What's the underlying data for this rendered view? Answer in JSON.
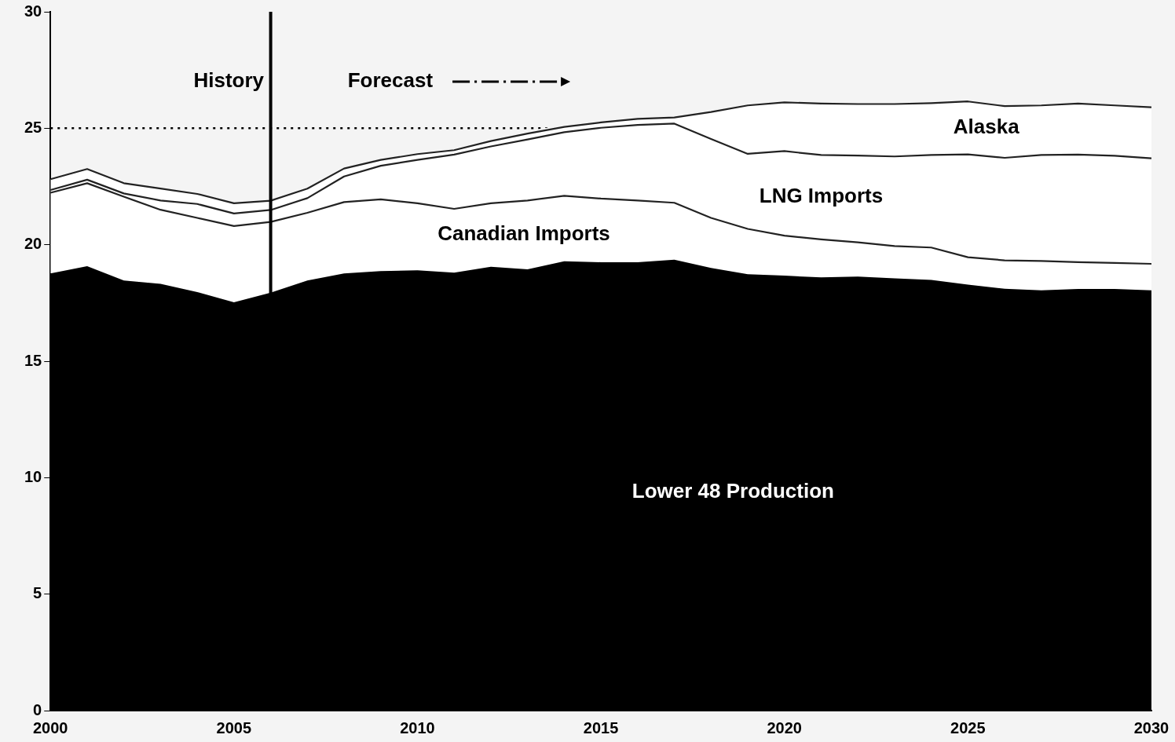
{
  "chart_data": {
    "type": "area",
    "stacked": true,
    "legend": false,
    "grid": false,
    "x": [
      2000,
      2001,
      2002,
      2003,
      2004,
      2005,
      2006,
      2007,
      2008,
      2009,
      2010,
      2011,
      2012,
      2013,
      2014,
      2015,
      2016,
      2017,
      2018,
      2019,
      2020,
      2021,
      2022,
      2023,
      2024,
      2025,
      2026,
      2027,
      2028,
      2029,
      2030
    ],
    "xlim": [
      2000,
      2030
    ],
    "xticks": [
      2000,
      2005,
      2010,
      2015,
      2020,
      2025,
      2030
    ],
    "ylim": [
      0,
      30
    ],
    "yticks": [
      0,
      5,
      10,
      15,
      20,
      25,
      30
    ],
    "series": [
      {
        "name": "Lower 48 Production",
        "color": "#000000",
        "values": [
          18.77,
          19.08,
          18.46,
          18.32,
          17.97,
          17.53,
          17.94,
          18.46,
          18.77,
          18.87,
          18.9,
          18.8,
          19.05,
          18.94,
          19.29,
          19.25,
          19.25,
          19.36,
          19.0,
          18.73,
          18.67,
          18.6,
          18.63,
          18.56,
          18.49,
          18.29,
          18.11,
          18.04,
          18.1,
          18.1,
          18.04
        ]
      },
      {
        "name": "Canadian Imports",
        "color": "#ffffff",
        "values": [
          3.46,
          3.56,
          3.6,
          3.18,
          3.18,
          3.27,
          3.04,
          2.91,
          3.06,
          3.08,
          2.88,
          2.74,
          2.73,
          2.96,
          2.81,
          2.73,
          2.65,
          2.44,
          2.15,
          1.95,
          1.72,
          1.63,
          1.47,
          1.38,
          1.39,
          1.17,
          1.22,
          1.26,
          1.15,
          1.12,
          1.14
        ]
      },
      {
        "name": "LNG Imports",
        "color": "#ffffff",
        "values": [
          0.12,
          0.15,
          0.14,
          0.4,
          0.6,
          0.54,
          0.51,
          0.63,
          1.1,
          1.44,
          1.86,
          2.33,
          2.44,
          2.62,
          2.73,
          3.04,
          3.24,
          3.4,
          3.39,
          3.22,
          3.63,
          3.62,
          3.73,
          3.85,
          3.97,
          4.42,
          4.4,
          4.55,
          4.62,
          4.6,
          4.53
        ]
      },
      {
        "name": "Alaska",
        "color": "#ffffff",
        "values": [
          0.46,
          0.46,
          0.44,
          0.51,
          0.43,
          0.44,
          0.4,
          0.41,
          0.34,
          0.25,
          0.25,
          0.19,
          0.23,
          0.25,
          0.23,
          0.23,
          0.26,
          0.26,
          1.16,
          2.08,
          2.09,
          2.21,
          2.21,
          2.25,
          2.23,
          2.27,
          2.22,
          2.13,
          2.19,
          2.16,
          2.19
        ]
      }
    ],
    "ref_lines": [
      {
        "axis": "y",
        "value": 25,
        "line_style": "dotted"
      },
      {
        "axis": "x",
        "value": 2006,
        "line_style": "solid"
      }
    ],
    "annotations": [
      "History",
      "Forecast"
    ]
  }
}
